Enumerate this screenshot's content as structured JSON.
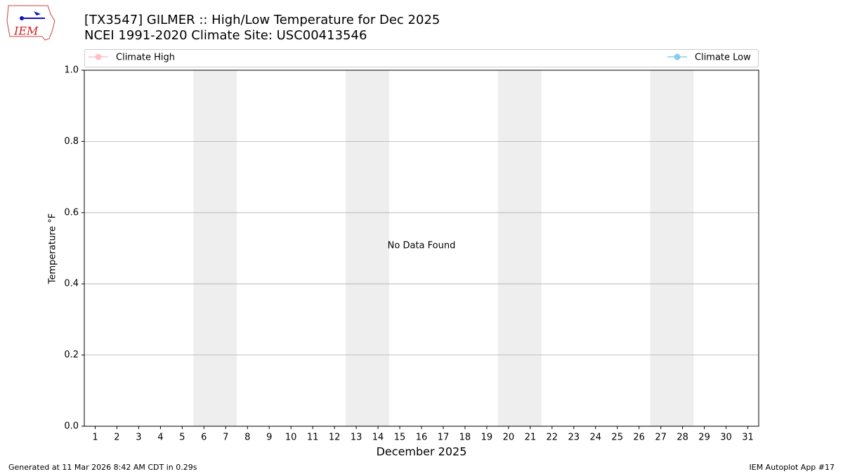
{
  "chart_data": {
    "type": "line",
    "title": "[TX3547] GILMER :: High/Low Temperature for Dec 2025",
    "subtitle": "NCEI 1991-2020 Climate Site: USC00413546",
    "logo_text": "IEM",
    "x_label": "December 2025",
    "y_label": "Temperature °F",
    "annotation": "No Data Found",
    "footer_left": "Generated at 11 Mar 2026 8:42 AM CDT in 0.29s",
    "footer_right": "IEM Autoplot App #17",
    "x": [
      1,
      2,
      3,
      4,
      5,
      6,
      7,
      8,
      9,
      10,
      11,
      12,
      13,
      14,
      15,
      16,
      17,
      18,
      19,
      20,
      21,
      22,
      23,
      24,
      25,
      26,
      27,
      28,
      29,
      30,
      31
    ],
    "xlim": [
      0.5,
      31.5
    ],
    "ylim": [
      0,
      1
    ],
    "yticks": [
      {
        "value": 0,
        "label": "0.0"
      },
      {
        "value": 0.2,
        "label": "0.2"
      },
      {
        "value": 0.4,
        "label": "0.4"
      },
      {
        "value": 0.6,
        "label": "0.6"
      },
      {
        "value": 0.8,
        "label": "0.8"
      },
      {
        "value": 1,
        "label": "1.0"
      }
    ],
    "grid": true,
    "series": [
      {
        "name": "Climate High",
        "color": "#ffc0cb",
        "values": [
          null,
          null,
          null,
          null,
          null,
          null,
          null,
          null,
          null,
          null,
          null,
          null,
          null,
          null,
          null,
          null,
          null,
          null,
          null,
          null,
          null,
          null,
          null,
          null,
          null,
          null,
          null,
          null,
          null,
          null,
          null
        ]
      },
      {
        "name": "Climate Low",
        "color": "#87ceeb",
        "values": [
          null,
          null,
          null,
          null,
          null,
          null,
          null,
          null,
          null,
          null,
          null,
          null,
          null,
          null,
          null,
          null,
          null,
          null,
          null,
          null,
          null,
          null,
          null,
          null,
          null,
          null,
          null,
          null,
          null,
          null,
          null
        ]
      }
    ]
  }
}
